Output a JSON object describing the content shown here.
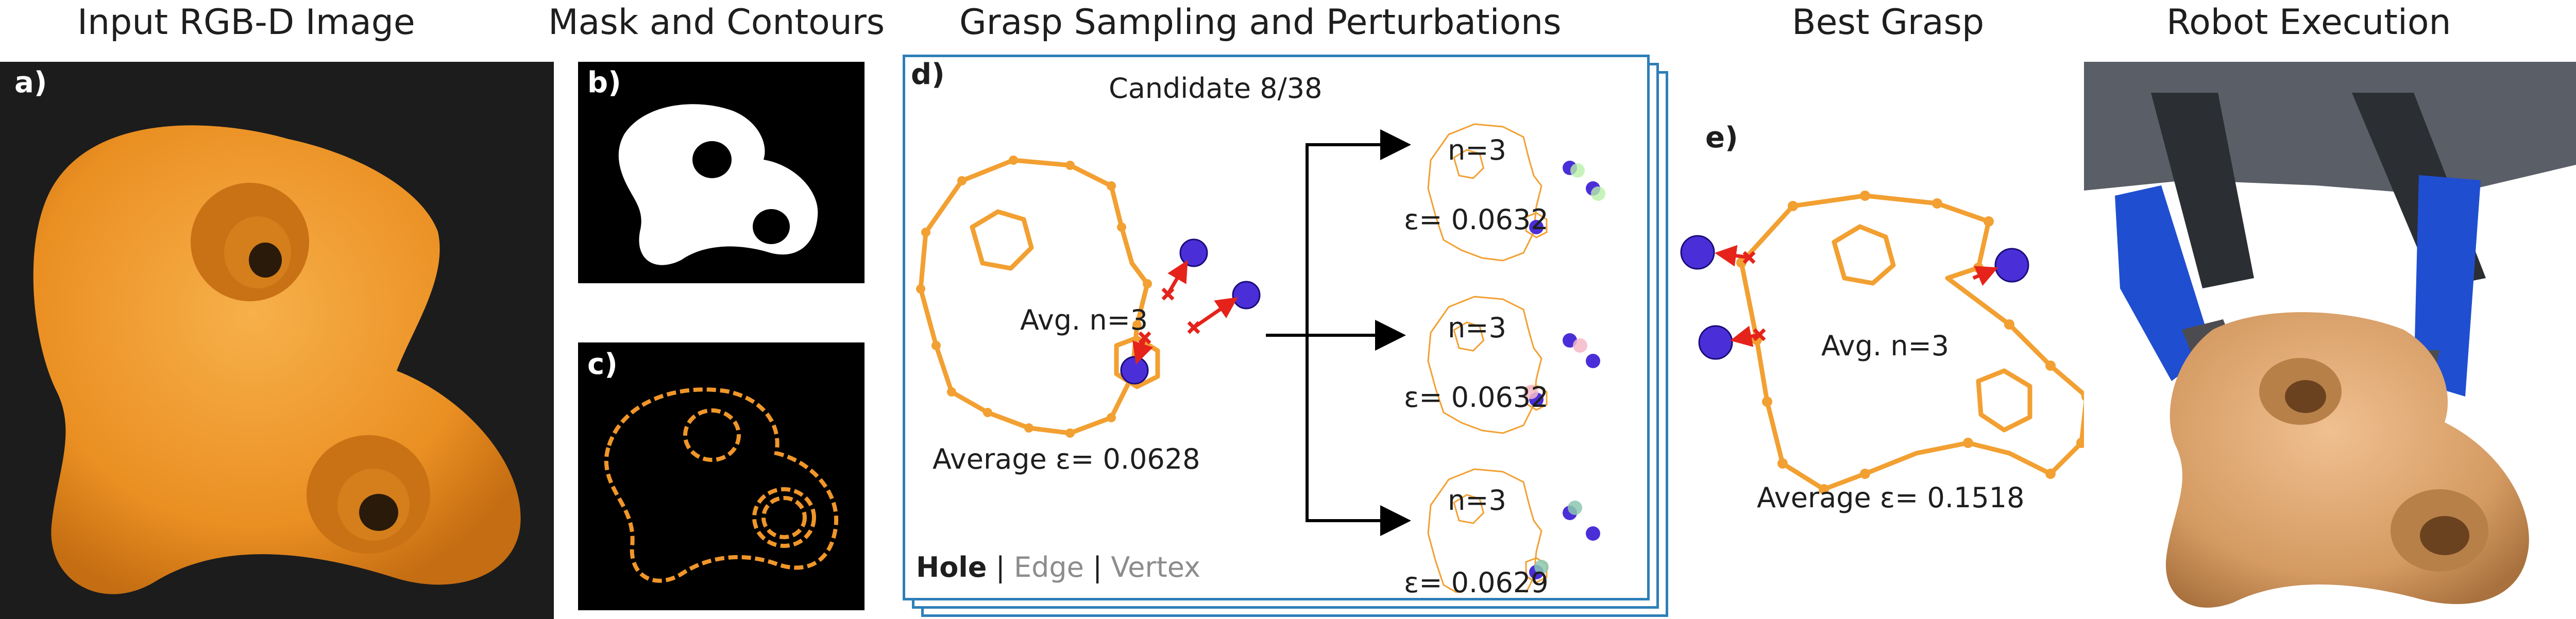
{
  "headers": {
    "input": "Input RGB-D Image",
    "mask": "Mask and Contours",
    "grasp": "Grasp Sampling and Perturbations",
    "best": "Best Grasp",
    "robot": "Robot Execution"
  },
  "panels": {
    "a": "a)",
    "b": "b)",
    "c": "c)",
    "d": "d)",
    "e": "e)"
  },
  "grasp_panel": {
    "candidate": "Candidate 8/38",
    "avg_n": "Avg. n=3",
    "avg_eps": "Average ε= 0.0628",
    "perturbations": [
      {
        "n": "n=3",
        "eps": "ε= 0.0632"
      },
      {
        "n": "n=3",
        "eps": "ε= 0.0632"
      },
      {
        "n": "n=3",
        "eps": "ε= 0.0629"
      }
    ],
    "legend": {
      "hole": "Hole",
      "sep1": " | ",
      "edge": "Edge",
      "sep2": " | ",
      "vertex": "Vertex"
    }
  },
  "best_panel": {
    "avg_n": "Avg. n=3",
    "avg_eps": "Average ε= 0.1518"
  },
  "colors": {
    "contour": "#f2a032",
    "object": "#f0962a",
    "contact": "#4a2fd8",
    "arrow": "#e5231b",
    "frame": "#2e7fb8"
  }
}
